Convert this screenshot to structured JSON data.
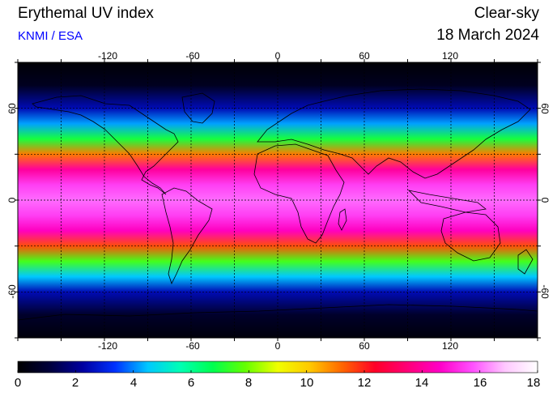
{
  "header": {
    "title": "Erythemal UV index",
    "credit": "KNMI / ESA",
    "condition": "Clear-sky",
    "date": "18 March 2024"
  },
  "colors": {
    "credit": "#0000ff",
    "background": "#ffffff",
    "frame": "#000000"
  },
  "map": {
    "projection": "equirectangular",
    "lon_range": [
      -180,
      180
    ],
    "lat_range": [
      -90,
      90
    ],
    "gridlines": "dotted every 30 degrees",
    "grid": true,
    "variable": "Erythemal UV index"
  },
  "axes": {
    "lon_ticks": [
      "-120",
      "-60",
      "0",
      "60",
      "120"
    ],
    "lat_ticks": [
      "60",
      "0",
      "-60"
    ]
  },
  "colorbar": {
    "min": 0,
    "max": 18,
    "labels": [
      "0",
      "2",
      "4",
      "6",
      "8",
      "10",
      "12",
      "14",
      "16",
      "18"
    ],
    "colormap": [
      "#000000",
      "#00003c",
      "#0000a0",
      "#0032ff",
      "#00c8ff",
      "#00ffb4",
      "#00ff50",
      "#64ff00",
      "#f0ff00",
      "#ffc800",
      "#ff6400",
      "#ff0028",
      "#ff0078",
      "#ff00c8",
      "#ff50ff",
      "#ffc8ff",
      "#ffffff"
    ]
  },
  "uv_profile": {
    "description_lat_deg": [
      -90,
      -75,
      -60,
      -50,
      -40,
      -30,
      -20,
      -10,
      0,
      10,
      20,
      30,
      40,
      50,
      60,
      75,
      90
    ],
    "uv_index": [
      0.2,
      0.8,
      2.5,
      4.5,
      7.5,
      11.5,
      14.5,
      15.5,
      16.0,
      15.5,
      14.0,
      11.0,
      7.0,
      4.2,
      2.5,
      0.6,
      0.1
    ]
  }
}
